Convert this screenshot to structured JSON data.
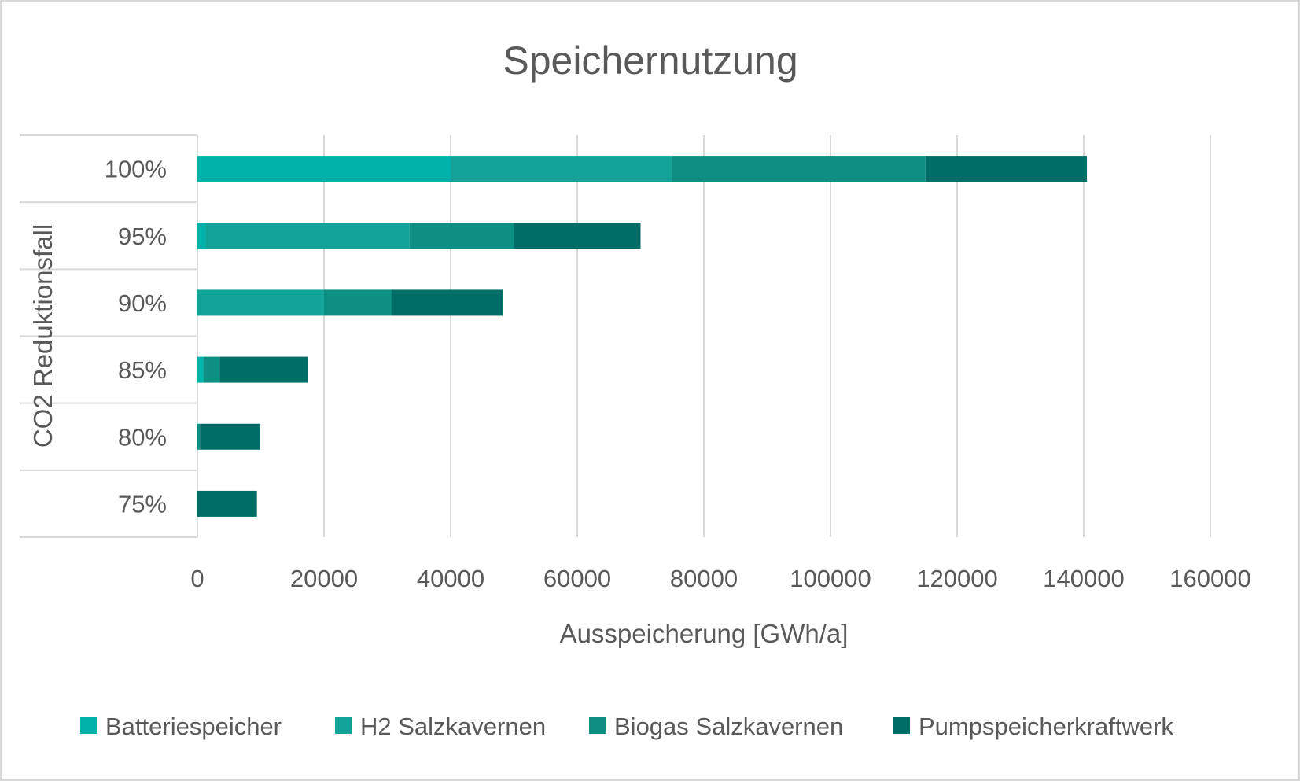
{
  "chart_data": {
    "type": "bar",
    "orientation": "horizontal",
    "stacked": true,
    "title": "Speichernutzung",
    "xlabel": "Ausspeicherung  [GWh/a]",
    "ylabel": "CO2 Reduktionsfall",
    "xlim": [
      0,
      160000
    ],
    "xticks": [
      "0",
      "20000",
      "40000",
      "60000",
      "80000",
      "100000",
      "120000",
      "140000",
      "160000"
    ],
    "grid": true,
    "legend_position": "bottom",
    "categories": [
      "100%",
      "95%",
      "90%",
      "85%",
      "80%",
      "75%"
    ],
    "series": [
      {
        "name": "Batteriespeicher",
        "color": "#00b2aa",
        "values": [
          40000,
          1300,
          0,
          1000,
          0,
          0
        ]
      },
      {
        "name": "H2 Salzkavernen",
        "color": "#13a399",
        "values": [
          35000,
          32200,
          20000,
          0,
          0,
          0
        ]
      },
      {
        "name": "Biogas Salzkavernen",
        "color": "#0e8f84",
        "values": [
          40000,
          16500,
          10800,
          2500,
          400,
          0
        ]
      },
      {
        "name": "Pumpspeicherkraftwerk",
        "color": "#006d66",
        "values": [
          25500,
          20000,
          17400,
          14000,
          9500,
          9400
        ]
      }
    ]
  }
}
